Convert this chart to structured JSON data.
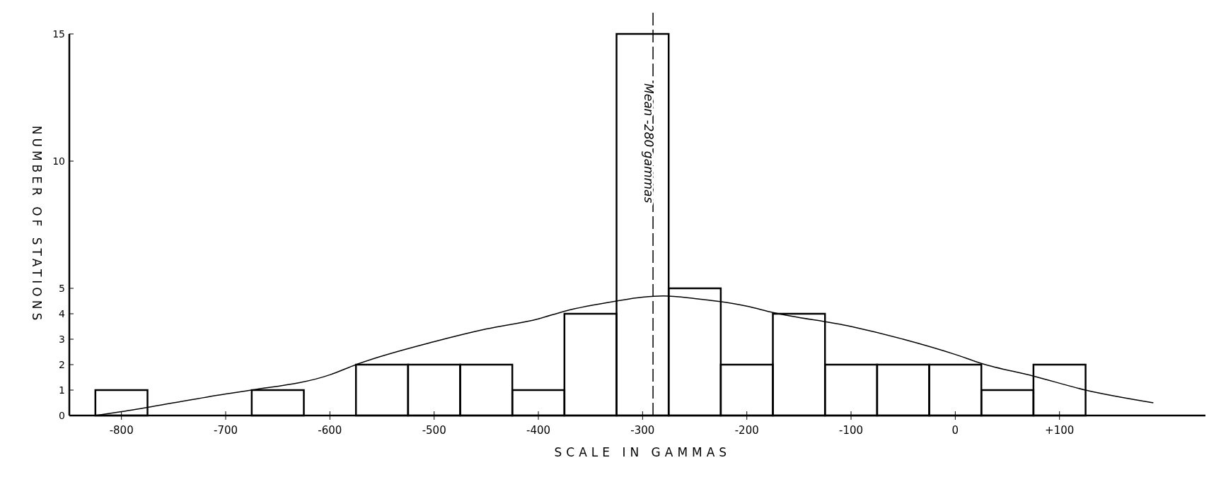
{
  "chart_data": {
    "type": "histogram",
    "xlabel": "SCALE IN GAMMAS",
    "ylabel": "NUMBER OF STATIONS",
    "bins": [
      -825,
      -775,
      -725,
      -675,
      -625,
      -575,
      -525,
      -475,
      -425,
      -375,
      -325,
      -275,
      -225,
      -175,
      -125,
      -75,
      -25,
      25,
      75,
      125
    ],
    "values": [
      1,
      0,
      0,
      1,
      0,
      2,
      2,
      2,
      1,
      4,
      15,
      5,
      2,
      4,
      2,
      2,
      2,
      1,
      2
    ],
    "color": "#000000",
    "series": [
      {
        "type": "line",
        "color": "#000000",
        "x": [
          -825,
          -800,
          -750,
          -700,
          -675,
          -600,
          -575,
          -500,
          -450,
          -400,
          -375,
          -325,
          -300,
          -280,
          -250,
          -200,
          -175,
          -100,
          -50,
          0,
          25,
          75,
          125,
          190
        ],
        "values": [
          0,
          0.15,
          0.5,
          0.85,
          1,
          1.6,
          2,
          2.9,
          3.4,
          3.8,
          4.1,
          4.5,
          4.65,
          4.7,
          4.6,
          4.3,
          4.05,
          3.5,
          3,
          2.4,
          2.05,
          1.55,
          1,
          0.5
        ]
      }
    ],
    "xlim": [
      -850,
      240
    ],
    "ylim": [
      0,
      15
    ],
    "xticks": [
      -800,
      -700,
      -600,
      -500,
      -400,
      -300,
      -200,
      -100,
      0,
      {
        "value": 100,
        "label": "+100"
      }
    ],
    "yticks": [
      0,
      1,
      2,
      3,
      4,
      5,
      10,
      15
    ],
    "ref_lines": [
      {
        "axis": "x",
        "value": -290,
        "label": "Mean -280 gammas",
        "line_style": "dashed",
        "color": "#000000"
      }
    ],
    "grid": false
  }
}
